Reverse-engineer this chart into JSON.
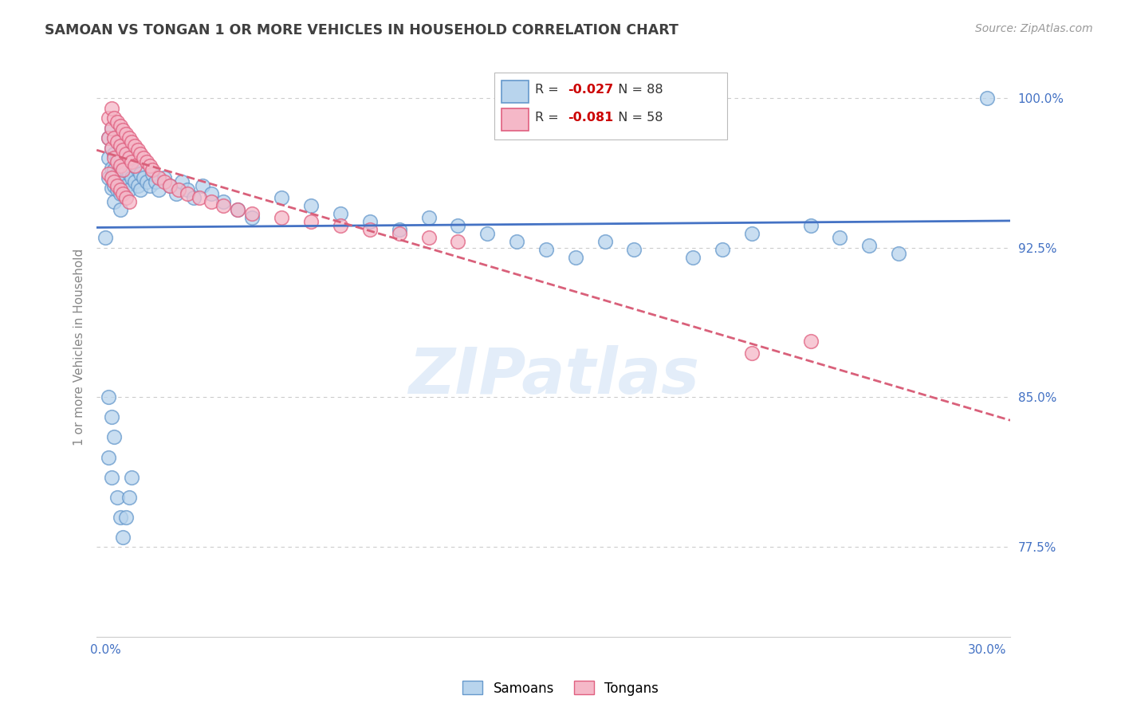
{
  "title": "SAMOAN VS TONGAN 1 OR MORE VEHICLES IN HOUSEHOLD CORRELATION CHART",
  "source": "Source: ZipAtlas.com",
  "ylabel": "1 or more Vehicles in Household",
  "ylim_low": 0.73,
  "ylim_high": 1.02,
  "xlim_low": -0.003,
  "xlim_high": 0.308,
  "ytick_positions": [
    0.775,
    0.85,
    0.925,
    1.0
  ],
  "ytick_labels": [
    "77.5%",
    "85.0%",
    "92.5%",
    "100.0%"
  ],
  "xtick_positions": [
    0.0,
    0.05,
    0.1,
    0.15,
    0.2,
    0.25,
    0.3
  ],
  "samoan_R": -0.027,
  "samoan_N": 88,
  "tongan_R": -0.081,
  "tongan_N": 58,
  "samoan_face_color": "#b8d4ed",
  "samoan_edge_color": "#6699cc",
  "tongan_face_color": "#f5b8c8",
  "tongan_edge_color": "#e06080",
  "samoan_line_color": "#4472c4",
  "tongan_line_color": "#d9607a",
  "grid_color": "#cccccc",
  "title_color": "#404040",
  "axis_label_color": "#888888",
  "tick_color": "#4472c4",
  "source_color": "#999999",
  "watermark_color": "#ccdff5",
  "background_color": "#ffffff",
  "r_color": "#cc0000",
  "n_color": "#333333",
  "samoan_x": [
    0.001,
    0.001,
    0.001,
    0.002,
    0.002,
    0.002,
    0.002,
    0.003,
    0.003,
    0.003,
    0.003,
    0.003,
    0.004,
    0.004,
    0.004,
    0.004,
    0.005,
    0.005,
    0.005,
    0.005,
    0.005,
    0.006,
    0.006,
    0.006,
    0.007,
    0.007,
    0.007,
    0.008,
    0.008,
    0.008,
    0.009,
    0.009,
    0.01,
    0.01,
    0.011,
    0.011,
    0.012,
    0.012,
    0.013,
    0.014,
    0.015,
    0.016,
    0.017,
    0.018,
    0.02,
    0.022,
    0.024,
    0.026,
    0.028,
    0.03,
    0.033,
    0.036,
    0.04,
    0.045,
    0.05,
    0.06,
    0.07,
    0.08,
    0.09,
    0.1,
    0.11,
    0.12,
    0.13,
    0.14,
    0.15,
    0.16,
    0.17,
    0.18,
    0.2,
    0.21,
    0.22,
    0.24,
    0.25,
    0.26,
    0.27,
    0.0,
    0.001,
    0.002,
    0.003,
    0.001,
    0.002,
    0.004,
    0.005,
    0.006,
    0.007,
    0.008,
    0.009,
    0.3
  ],
  "samoan_y": [
    0.98,
    0.97,
    0.96,
    0.985,
    0.975,
    0.965,
    0.955,
    0.98,
    0.972,
    0.964,
    0.956,
    0.948,
    0.978,
    0.97,
    0.962,
    0.954,
    0.976,
    0.968,
    0.96,
    0.952,
    0.944,
    0.974,
    0.966,
    0.958,
    0.972,
    0.964,
    0.956,
    0.97,
    0.962,
    0.954,
    0.968,
    0.96,
    0.966,
    0.958,
    0.964,
    0.956,
    0.962,
    0.954,
    0.96,
    0.958,
    0.956,
    0.962,
    0.958,
    0.954,
    0.96,
    0.956,
    0.952,
    0.958,
    0.954,
    0.95,
    0.956,
    0.952,
    0.948,
    0.944,
    0.94,
    0.95,
    0.946,
    0.942,
    0.938,
    0.934,
    0.94,
    0.936,
    0.932,
    0.928,
    0.924,
    0.92,
    0.928,
    0.924,
    0.92,
    0.924,
    0.932,
    0.936,
    0.93,
    0.926,
    0.922,
    0.93,
    0.85,
    0.84,
    0.83,
    0.82,
    0.81,
    0.8,
    0.79,
    0.78,
    0.79,
    0.8,
    0.81,
    1.0
  ],
  "tongan_x": [
    0.001,
    0.001,
    0.002,
    0.002,
    0.002,
    0.003,
    0.003,
    0.003,
    0.004,
    0.004,
    0.004,
    0.005,
    0.005,
    0.005,
    0.006,
    0.006,
    0.006,
    0.007,
    0.007,
    0.008,
    0.008,
    0.009,
    0.009,
    0.01,
    0.01,
    0.011,
    0.012,
    0.013,
    0.014,
    0.015,
    0.016,
    0.018,
    0.02,
    0.022,
    0.025,
    0.028,
    0.032,
    0.036,
    0.04,
    0.045,
    0.05,
    0.06,
    0.07,
    0.08,
    0.09,
    0.1,
    0.11,
    0.12,
    0.001,
    0.002,
    0.003,
    0.004,
    0.005,
    0.006,
    0.007,
    0.008,
    0.22,
    0.24
  ],
  "tongan_y": [
    0.99,
    0.98,
    0.995,
    0.985,
    0.975,
    0.99,
    0.98,
    0.97,
    0.988,
    0.978,
    0.968,
    0.986,
    0.976,
    0.966,
    0.984,
    0.974,
    0.964,
    0.982,
    0.972,
    0.98,
    0.97,
    0.978,
    0.968,
    0.976,
    0.966,
    0.974,
    0.972,
    0.97,
    0.968,
    0.966,
    0.964,
    0.96,
    0.958,
    0.956,
    0.954,
    0.952,
    0.95,
    0.948,
    0.946,
    0.944,
    0.942,
    0.94,
    0.938,
    0.936,
    0.934,
    0.932,
    0.93,
    0.928,
    0.962,
    0.96,
    0.958,
    0.956,
    0.954,
    0.952,
    0.95,
    0.948,
    0.872,
    0.878
  ]
}
